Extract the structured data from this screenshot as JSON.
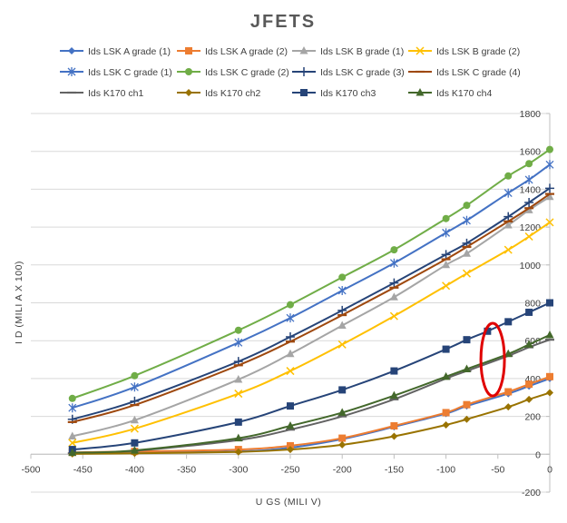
{
  "chart_data": {
    "type": "line",
    "title": "JFETS",
    "xlabel": "U GS (MILI V)",
    "ylabel": "I D (MILI A X 100)",
    "xlim": [
      -500,
      0
    ],
    "ylim": [
      -200,
      1800
    ],
    "x_ticks": [
      -500,
      -450,
      -400,
      -350,
      -300,
      -250,
      -200,
      -150,
      -100,
      -50,
      0
    ],
    "y_ticks": [
      -200,
      0,
      200,
      400,
      600,
      800,
      1000,
      1200,
      1400,
      1600,
      1800
    ],
    "x_tick_labels": [
      "-500",
      "-450",
      "-400",
      "-350",
      "-300",
      "-250",
      "-200",
      "-150",
      "-100",
      "-50",
      "0"
    ],
    "y_tick_labels": [
      "-200",
      "0",
      "200",
      "400",
      "600",
      "800",
      "1000",
      "1200",
      "1400",
      "1600",
      "1800"
    ],
    "grid": "horizontal",
    "legend_position": "top",
    "annotation": "red ellipse around the Ids K170 ch3 / ch4 curves near UGS = -55",
    "annotation_color": "#e00000",
    "series": [
      {
        "name": "Ids LSK A grade (1)",
        "color": "#4472c4",
        "marker": "diamond",
        "x": [
          -460,
          -400,
          -300,
          -250,
          -200,
          -150,
          -100,
          -80,
          -40,
          -20,
          0
        ],
        "y": [
          5,
          8,
          15,
          35,
          80,
          145,
          215,
          255,
          320,
          360,
          400
        ]
      },
      {
        "name": "Ids LSK A grade (2)",
        "color": "#ed7d31",
        "marker": "square",
        "x": [
          -460,
          -400,
          -300,
          -250,
          -200,
          -150,
          -100,
          -80,
          -40,
          -20,
          0
        ],
        "y": [
          10,
          15,
          25,
          45,
          85,
          150,
          220,
          262,
          330,
          370,
          410
        ]
      },
      {
        "name": "Ids LSK B grade (1)",
        "color": "#a5a5a5",
        "marker": "triangle",
        "x": [
          -460,
          -400,
          -300,
          -250,
          -200,
          -150,
          -100,
          -80,
          -40,
          -20,
          0
        ],
        "y": [
          95,
          180,
          395,
          530,
          680,
          830,
          1000,
          1060,
          1210,
          1290,
          1360
        ]
      },
      {
        "name": "Ids LSK B grade (2)",
        "color": "#ffc000",
        "marker": "x",
        "x": [
          -460,
          -400,
          -300,
          -250,
          -200,
          -150,
          -100,
          -80,
          -40,
          -20,
          0
        ],
        "y": [
          60,
          135,
          320,
          440,
          580,
          730,
          890,
          955,
          1080,
          1150,
          1225
        ]
      },
      {
        "name": "Ids LSK C grade (1)",
        "color": "#4472c4",
        "marker": "star",
        "x": [
          -460,
          -400,
          -300,
          -250,
          -200,
          -150,
          -100,
          -80,
          -40,
          -20,
          0
        ],
        "y": [
          245,
          355,
          590,
          720,
          865,
          1010,
          1170,
          1235,
          1380,
          1450,
          1530
        ]
      },
      {
        "name": "Ids LSK C grade (2)",
        "color": "#70ad47",
        "marker": "circle",
        "x": [
          -460,
          -400,
          -300,
          -250,
          -200,
          -150,
          -100,
          -80,
          -40,
          -20,
          0
        ],
        "y": [
          295,
          415,
          655,
          790,
          935,
          1080,
          1245,
          1315,
          1470,
          1535,
          1610
        ]
      },
      {
        "name": "Ids LSK C grade (3)",
        "color": "#264478",
        "marker": "plus",
        "x": [
          -460,
          -400,
          -300,
          -250,
          -200,
          -150,
          -100,
          -80,
          -40,
          -20,
          0
        ],
        "y": [
          185,
          280,
          490,
          620,
          760,
          905,
          1055,
          1115,
          1255,
          1330,
          1405
        ]
      },
      {
        "name": "Ids LSK C grade (4)",
        "color": "#9e480e",
        "marker": "dash",
        "x": [
          -460,
          -400,
          -300,
          -250,
          -200,
          -150,
          -100,
          -80,
          -40,
          -20,
          0
        ],
        "y": [
          170,
          260,
          470,
          595,
          735,
          880,
          1030,
          1095,
          1230,
          1300,
          1375
        ]
      },
      {
        "name": "Ids K170 ch1",
        "color": "#636363",
        "marker": "dash",
        "x": [
          -460,
          -400,
          -300,
          -250,
          -200,
          -150,
          -100,
          -80,
          -40,
          -20,
          0
        ],
        "y": [
          5,
          18,
          75,
          130,
          200,
          290,
          400,
          440,
          520,
          565,
          605
        ]
      },
      {
        "name": "Ids K170 ch2",
        "color": "#997300",
        "marker": "diamond",
        "x": [
          -460,
          -400,
          -300,
          -250,
          -200,
          -150,
          -100,
          -80,
          -40,
          -20,
          0
        ],
        "y": [
          2,
          5,
          12,
          25,
          50,
          95,
          155,
          185,
          250,
          290,
          325
        ]
      },
      {
        "name": "Ids K170 ch3",
        "color": "#264478",
        "marker": "square",
        "x": [
          -460,
          -400,
          -300,
          -250,
          -200,
          -150,
          -100,
          -80,
          -60,
          -40,
          -20,
          0
        ],
        "y": [
          25,
          60,
          170,
          255,
          340,
          440,
          555,
          605,
          650,
          700,
          750,
          800
        ]
      },
      {
        "name": "Ids K170 ch4",
        "color": "#43682b",
        "marker": "triangle",
        "x": [
          -460,
          -400,
          -300,
          -250,
          -200,
          -150,
          -100,
          -80,
          -40,
          -20,
          0
        ],
        "y": [
          8,
          20,
          85,
          150,
          220,
          310,
          410,
          450,
          530,
          580,
          630
        ]
      }
    ]
  }
}
